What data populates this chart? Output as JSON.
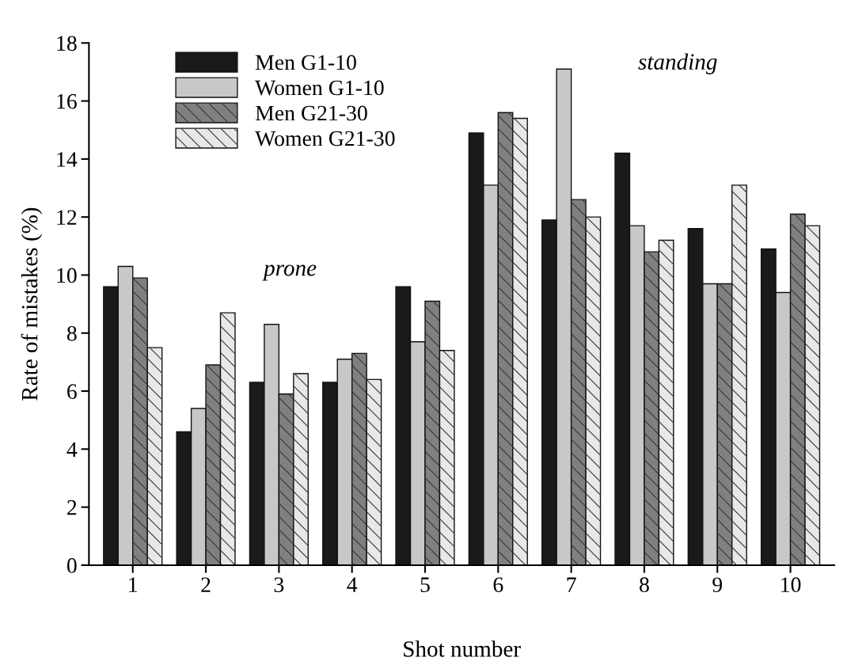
{
  "chart_data": {
    "type": "bar",
    "xlabel": "Shot number",
    "ylabel": "Rate of mistakes (%)",
    "categories": [
      "1",
      "2",
      "3",
      "4",
      "5",
      "6",
      "7",
      "8",
      "9",
      "10"
    ],
    "series": [
      {
        "name": "Men G1-10",
        "color": "#1a1a1a",
        "values": [
          9.6,
          4.6,
          6.3,
          6.3,
          9.6,
          14.9,
          11.9,
          14.2,
          11.6,
          10.9
        ]
      },
      {
        "name": "Women G1-10",
        "color": "#c8c8c8",
        "values": [
          10.3,
          5.4,
          8.3,
          7.1,
          7.7,
          13.1,
          17.1,
          11.7,
          9.7,
          9.4
        ]
      },
      {
        "name": "Men G21-30",
        "color": "#808080",
        "values": [
          9.9,
          6.9,
          5.9,
          7.3,
          9.1,
          15.6,
          12.6,
          10.8,
          9.7,
          12.1
        ]
      },
      {
        "name": "Women G21-30",
        "color": "#e8e8e8",
        "values": [
          7.5,
          8.7,
          6.6,
          6.4,
          7.4,
          15.4,
          12.0,
          11.2,
          13.1,
          11.7
        ]
      }
    ],
    "ylim": [
      0,
      18
    ],
    "yticks": [
      0,
      2,
      4,
      6,
      8,
      10,
      12,
      14,
      16,
      18
    ],
    "grid": false,
    "legend": "top left",
    "annotations": [
      "prone",
      "standing"
    ]
  }
}
